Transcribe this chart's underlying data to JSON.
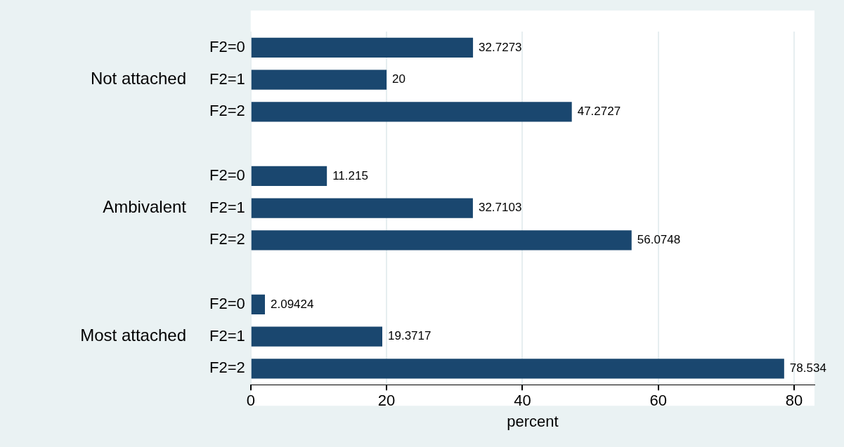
{
  "chart_data": {
    "type": "bar",
    "orientation": "horizontal",
    "categories": [
      "F2=0",
      "F2=1",
      "F2=2",
      null,
      "F2=0",
      "F2=1",
      "F2=2",
      null,
      "F2=0",
      "F2=1",
      "F2=2"
    ],
    "values": [
      32.7273,
      20,
      47.2727,
      null,
      11.215,
      32.7103,
      56.0748,
      null,
      2.09424,
      19.3717,
      78.534
    ],
    "color": "#1a476f",
    "annotations": [
      "Not attached",
      "Ambivalent",
      "Most attached"
    ],
    "xlabel": "percent",
    "xlim": [
      0,
      83
    ],
    "xticks": [
      0,
      20,
      40,
      60,
      80
    ],
    "grid": "x",
    "data_labels": true
  }
}
